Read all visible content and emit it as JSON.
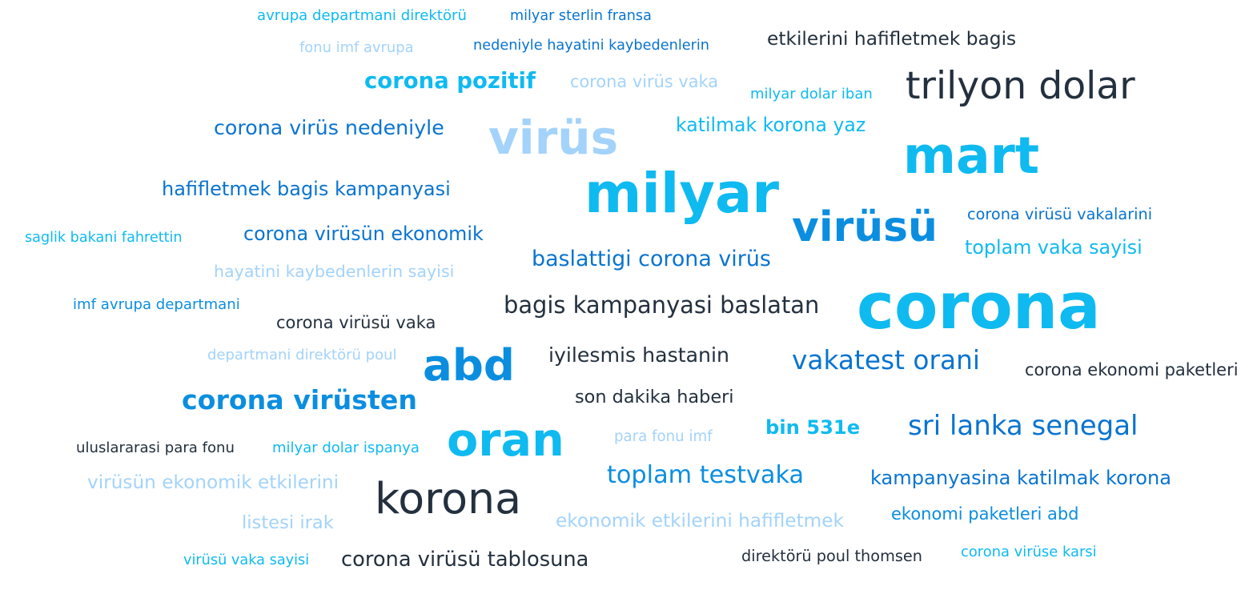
{
  "colors": {
    "dark": "#23303f",
    "cyan": "#0fbaf1",
    "blue": "#0b8ee0",
    "mid_blue": "#0a74cf",
    "light_blue": "#a3d3fa"
  },
  "words": [
    {
      "text": "avrupa departmani direktörü",
      "color": "cyan"
    },
    {
      "text": "milyar sterlin fransa",
      "color": "mid_blue"
    },
    {
      "text": "fonu imf avrupa",
      "color": "light_blue"
    },
    {
      "text": "nedeniyle hayatini kaybedenlerin",
      "color": "mid_blue"
    },
    {
      "text": "etkilerini hafifletmek bagis",
      "color": "dark"
    },
    {
      "text": "corona pozitif",
      "color": "cyan"
    },
    {
      "text": "corona virüs vaka",
      "color": "light_blue"
    },
    {
      "text": "milyar dolar iban",
      "color": "cyan"
    },
    {
      "text": "trilyon dolar",
      "color": "dark"
    },
    {
      "text": "corona virüs nedeniyle",
      "color": "mid_blue"
    },
    {
      "text": "virüs",
      "color": "light_blue"
    },
    {
      "text": "katilmak korona yaz",
      "color": "cyan"
    },
    {
      "text": "mart",
      "color": "cyan"
    },
    {
      "text": "milyar",
      "color": "cyan"
    },
    {
      "text": "hafifletmek bagis kampanyasi",
      "color": "mid_blue"
    },
    {
      "text": "virüsü",
      "color": "blue"
    },
    {
      "text": "corona virüsü vakalarini",
      "color": "mid_blue"
    },
    {
      "text": "saglik bakani fahrettin",
      "color": "cyan"
    },
    {
      "text": "corona virüsün ekonomik",
      "color": "mid_blue"
    },
    {
      "text": "toplam vaka sayisi",
      "color": "cyan"
    },
    {
      "text": "baslattigi corona virüs",
      "color": "mid_blue"
    },
    {
      "text": "hayatini kaybedenlerin sayisi",
      "color": "light_blue"
    },
    {
      "text": "corona",
      "color": "cyan"
    },
    {
      "text": "imf avrupa departmani",
      "color": "blue"
    },
    {
      "text": "bagis kampanyasi baslatan",
      "color": "dark"
    },
    {
      "text": "corona virüsü vaka",
      "color": "dark"
    },
    {
      "text": "departmani direktörü poul",
      "color": "light_blue"
    },
    {
      "text": "abd",
      "color": "blue"
    },
    {
      "text": "iyilesmis hastanin",
      "color": "dark"
    },
    {
      "text": "vakatest orani",
      "color": "mid_blue"
    },
    {
      "text": "corona ekonomi paketleri",
      "color": "dark"
    },
    {
      "text": "corona virüsten",
      "color": "blue"
    },
    {
      "text": "son dakika haberi",
      "color": "dark"
    },
    {
      "text": "bin 531e",
      "color": "cyan"
    },
    {
      "text": "sri lanka senegal",
      "color": "mid_blue"
    },
    {
      "text": "oran",
      "color": "cyan"
    },
    {
      "text": "para fonu imf",
      "color": "light_blue"
    },
    {
      "text": "uluslararasi para fonu",
      "color": "dark"
    },
    {
      "text": "milyar dolar ispanya",
      "color": "cyan"
    },
    {
      "text": "toplam testvaka",
      "color": "blue"
    },
    {
      "text": "kampanyasina katilmak korona",
      "color": "mid_blue"
    },
    {
      "text": "virüsün ekonomik etkilerini",
      "color": "light_blue"
    },
    {
      "text": "korona",
      "color": "dark"
    },
    {
      "text": "listesi irak",
      "color": "light_blue"
    },
    {
      "text": "ekonomik etkilerini hafifletmek",
      "color": "light_blue"
    },
    {
      "text": "ekonomi paketleri abd",
      "color": "blue"
    },
    {
      "text": "virüsü vaka sayisi",
      "color": "cyan"
    },
    {
      "text": "corona virüsü tablosuna",
      "color": "dark"
    },
    {
      "text": "direktörü poul thomsen",
      "color": "dark"
    },
    {
      "text": "corona virüse karsi",
      "color": "cyan"
    }
  ]
}
